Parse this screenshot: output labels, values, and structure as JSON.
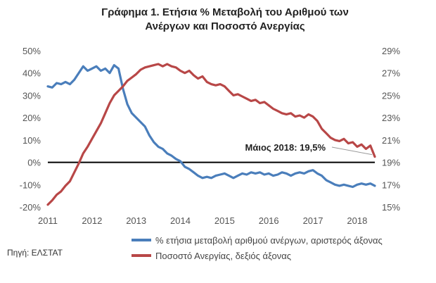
{
  "chart_data": {
    "type": "line",
    "title": [
      "Γράφημα 1. Ετήσια % Μεταβολή του Αριθμού των",
      "Ανέργων και Ποσοστό Ανεργίας"
    ],
    "y_left": {
      "ticks": [
        "50%",
        "40%",
        "30%",
        "20%",
        "10%",
        "0%",
        "-10%",
        "-20%"
      ],
      "ylim": [
        -20,
        50
      ]
    },
    "y_right": {
      "ticks": [
        "29%",
        "27%",
        "25%",
        "23%",
        "21%",
        "19%",
        "17%",
        "15%"
      ],
      "ylim": [
        15,
        29
      ]
    },
    "x_ticks": [
      "2011",
      "2012",
      "2013",
      "2014",
      "2015",
      "2016",
      "2017",
      "2018"
    ],
    "xlim": [
      2011.0,
      2018.4
    ],
    "series": [
      {
        "name": "% ετήσια μεταβολή αριθμού ανέργων, αριστερός άξονας",
        "axis": "left",
        "color": "#4a7ebb",
        "points": [
          [
            2011.0,
            34
          ],
          [
            2011.1,
            33.5
          ],
          [
            2011.2,
            35.5
          ],
          [
            2011.3,
            35
          ],
          [
            2011.4,
            36
          ],
          [
            2011.5,
            35
          ],
          [
            2011.6,
            37
          ],
          [
            2011.7,
            40
          ],
          [
            2011.8,
            43
          ],
          [
            2011.9,
            41
          ],
          [
            2012.0,
            42
          ],
          [
            2012.1,
            43
          ],
          [
            2012.2,
            41
          ],
          [
            2012.3,
            42
          ],
          [
            2012.4,
            40
          ],
          [
            2012.5,
            43.5
          ],
          [
            2012.6,
            42
          ],
          [
            2012.7,
            33
          ],
          [
            2012.8,
            26
          ],
          [
            2012.9,
            22
          ],
          [
            2013.0,
            20
          ],
          [
            2013.1,
            18
          ],
          [
            2013.2,
            16
          ],
          [
            2013.3,
            12
          ],
          [
            2013.4,
            9
          ],
          [
            2013.5,
            7
          ],
          [
            2013.6,
            6
          ],
          [
            2013.7,
            4
          ],
          [
            2013.8,
            3
          ],
          [
            2013.9,
            1.5
          ],
          [
            2014.0,
            0.5
          ],
          [
            2014.1,
            -2
          ],
          [
            2014.2,
            -3
          ],
          [
            2014.3,
            -4.5
          ],
          [
            2014.4,
            -6
          ],
          [
            2014.5,
            -7
          ],
          [
            2014.6,
            -6.5
          ],
          [
            2014.7,
            -7
          ],
          [
            2014.8,
            -6
          ],
          [
            2014.9,
            -5.5
          ],
          [
            2015.0,
            -5
          ],
          [
            2015.1,
            -6
          ],
          [
            2015.2,
            -7
          ],
          [
            2015.3,
            -6
          ],
          [
            2015.4,
            -5
          ],
          [
            2015.5,
            -5.5
          ],
          [
            2015.6,
            -4.5
          ],
          [
            2015.7,
            -5
          ],
          [
            2015.8,
            -4.5
          ],
          [
            2015.9,
            -5.5
          ],
          [
            2016.0,
            -5
          ],
          [
            2016.1,
            -6
          ],
          [
            2016.2,
            -5.5
          ],
          [
            2016.3,
            -4.5
          ],
          [
            2016.4,
            -5
          ],
          [
            2016.5,
            -6
          ],
          [
            2016.6,
            -5
          ],
          [
            2016.7,
            -4.5
          ],
          [
            2016.8,
            -5
          ],
          [
            2016.9,
            -4
          ],
          [
            2017.0,
            -3.5
          ],
          [
            2017.1,
            -5
          ],
          [
            2017.2,
            -6
          ],
          [
            2017.3,
            -8
          ],
          [
            2017.4,
            -9
          ],
          [
            2017.5,
            -10
          ],
          [
            2017.6,
            -10.5
          ],
          [
            2017.7,
            -10
          ],
          [
            2017.8,
            -10.5
          ],
          [
            2017.9,
            -11
          ],
          [
            2018.0,
            -10
          ],
          [
            2018.1,
            -9.5
          ],
          [
            2018.2,
            -10
          ],
          [
            2018.3,
            -9.5
          ],
          [
            2018.4,
            -10.5
          ]
        ]
      },
      {
        "name": "Ποσοστό Ανεργίας, δεξιός άξονας",
        "axis": "right",
        "color": "#b84747",
        "points": [
          [
            2011.0,
            15.2
          ],
          [
            2011.1,
            15.6
          ],
          [
            2011.2,
            16.1
          ],
          [
            2011.3,
            16.4
          ],
          [
            2011.4,
            16.9
          ],
          [
            2011.5,
            17.3
          ],
          [
            2011.6,
            18.1
          ],
          [
            2011.7,
            18.9
          ],
          [
            2011.8,
            19.8
          ],
          [
            2011.9,
            20.4
          ],
          [
            2012.0,
            21.1
          ],
          [
            2012.1,
            21.8
          ],
          [
            2012.2,
            22.5
          ],
          [
            2012.3,
            23.4
          ],
          [
            2012.4,
            24.3
          ],
          [
            2012.5,
            25.0
          ],
          [
            2012.6,
            25.4
          ],
          [
            2012.7,
            25.8
          ],
          [
            2012.8,
            26.3
          ],
          [
            2012.9,
            26.6
          ],
          [
            2013.0,
            26.9
          ],
          [
            2013.1,
            27.3
          ],
          [
            2013.2,
            27.5
          ],
          [
            2013.3,
            27.6
          ],
          [
            2013.4,
            27.7
          ],
          [
            2013.5,
            27.8
          ],
          [
            2013.6,
            27.6
          ],
          [
            2013.7,
            27.8
          ],
          [
            2013.8,
            27.6
          ],
          [
            2013.9,
            27.5
          ],
          [
            2014.0,
            27.2
          ],
          [
            2014.1,
            27.0
          ],
          [
            2014.2,
            27.2
          ],
          [
            2014.3,
            26.8
          ],
          [
            2014.4,
            26.5
          ],
          [
            2014.5,
            26.7
          ],
          [
            2014.6,
            26.2
          ],
          [
            2014.7,
            26.0
          ],
          [
            2014.8,
            25.9
          ],
          [
            2014.9,
            26.0
          ],
          [
            2015.0,
            25.8
          ],
          [
            2015.1,
            25.4
          ],
          [
            2015.2,
            25.0
          ],
          [
            2015.3,
            25.1
          ],
          [
            2015.4,
            24.9
          ],
          [
            2015.5,
            24.7
          ],
          [
            2015.6,
            24.5
          ],
          [
            2015.7,
            24.6
          ],
          [
            2015.8,
            24.3
          ],
          [
            2015.9,
            24.4
          ],
          [
            2016.0,
            24.1
          ],
          [
            2016.1,
            23.8
          ],
          [
            2016.2,
            23.6
          ],
          [
            2016.3,
            23.4
          ],
          [
            2016.4,
            23.3
          ],
          [
            2016.5,
            23.4
          ],
          [
            2016.6,
            23.1
          ],
          [
            2016.7,
            23.2
          ],
          [
            2016.8,
            23.0
          ],
          [
            2016.9,
            23.3
          ],
          [
            2017.0,
            23.1
          ],
          [
            2017.1,
            22.7
          ],
          [
            2017.2,
            22.0
          ],
          [
            2017.3,
            21.6
          ],
          [
            2017.4,
            21.2
          ],
          [
            2017.5,
            21.0
          ],
          [
            2017.6,
            20.9
          ],
          [
            2017.7,
            21.1
          ],
          [
            2017.8,
            20.7
          ],
          [
            2017.9,
            20.8
          ],
          [
            2018.0,
            20.4
          ],
          [
            2018.1,
            20.6
          ],
          [
            2018.2,
            20.2
          ],
          [
            2018.3,
            20.5
          ],
          [
            2018.4,
            19.5
          ]
        ]
      }
    ],
    "annotation": {
      "text": "Μάιος 2018: 19,5%",
      "x": 2018.4,
      "y": 19.5,
      "axis": "right"
    }
  },
  "source_note": "Πηγή: ΕΛΣΤΑΤ"
}
